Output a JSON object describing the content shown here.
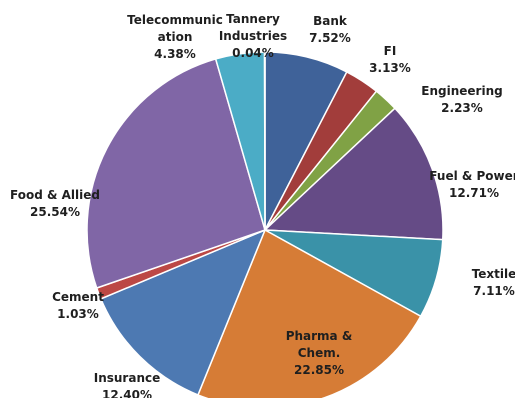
{
  "chart_data": {
    "type": "pie",
    "title": "",
    "slices": [
      {
        "name": "Bank",
        "value": 7.52,
        "label": "7.52%",
        "color": "#3F6299"
      },
      {
        "name": "FI",
        "value": 3.13,
        "label": "3.13%",
        "color": "#A23D3B"
      },
      {
        "name": "Engineering",
        "value": 2.23,
        "label": "2.23%",
        "color": "#80A245"
      },
      {
        "name": "Fuel & Power",
        "value": 12.71,
        "label": "12.71%",
        "color": "#654B86"
      },
      {
        "name": "Textile",
        "value": 7.11,
        "label": "7.11%",
        "color": "#3A92A8"
      },
      {
        "name": "Pharma & Chem.",
        "value": 22.85,
        "label": "22.85%",
        "color": "#D67C36"
      },
      {
        "name": "Insurance",
        "value": 12.4,
        "label": "12.40%",
        "color": "#4D79B2"
      },
      {
        "name": "Cement",
        "value": 1.03,
        "label": "1.03%",
        "color": "#BC4845"
      },
      {
        "name": "Food & Allied",
        "value": 25.54,
        "label": "25.54%",
        "color": "#8066A6"
      },
      {
        "name": "Telecommunication",
        "value": 4.38,
        "label": "4.38%",
        "color": "#4BACC6"
      },
      {
        "name": "Tannery Industries",
        "value": 0.04,
        "label": "0.04%",
        "color": "#F79646"
      }
    ]
  }
}
